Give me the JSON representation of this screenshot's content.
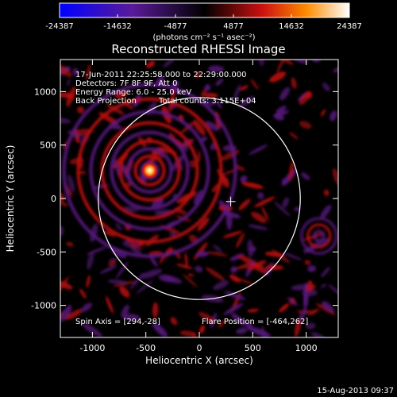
{
  "footer_date": "15-Aug-2013 09:37",
  "chart_data": {
    "type": "heatmap",
    "title": "Reconstructed RHESSI Image",
    "xlabel": "Heliocentric X (arcsec)",
    "ylabel": "Heliocentric Y (arcsec)",
    "xlim": [
      -1300,
      1300
    ],
    "ylim": [
      -1300,
      1300
    ],
    "x_ticks": [
      "-1000",
      "-500",
      "0",
      "500",
      "1000"
    ],
    "y_ticks": [
      "-1000",
      "-500",
      "0",
      "500",
      "1000"
    ],
    "x_tick_values": [
      -1000,
      -500,
      0,
      500,
      1000
    ],
    "y_tick_values": [
      -1000,
      -500,
      0,
      500,
      1000
    ],
    "colorbar": {
      "tick_labels": [
        "-24387",
        "-14632",
        "-4877",
        "4877",
        "14632",
        "24387"
      ],
      "min": -24387,
      "max": 24387,
      "units": "(photons cm⁻² s⁻¹ asec⁻²)",
      "colors": [
        "#0000ff",
        "#6a1a8a",
        "#000000",
        "#cc1010",
        "#ffb000",
        "#ffffff"
      ]
    },
    "annotations": {
      "time_range": "17-Jun-2011 22:25:58.000 to 22:29:00.000",
      "detectors": "Detectors: 7F 8F 9F, Att 0",
      "energy_range": "Energy Range: 6.0 - 25.0 keV",
      "method": "Back Projection",
      "total_counts": "Total counts: 3.115E+04",
      "spin_axis": "Spin Axis = [294,-28]",
      "flare_position": "Flare Position = [-464,262]"
    },
    "flare_position": [
      -464,
      262
    ],
    "spin_axis": [
      294,
      -28
    ],
    "solar_limb_radius": 945,
    "colors": {
      "limb": "#ffffff",
      "peak": "#fff8c0",
      "positive": "#c01010",
      "negative": "#5a1a80"
    }
  }
}
